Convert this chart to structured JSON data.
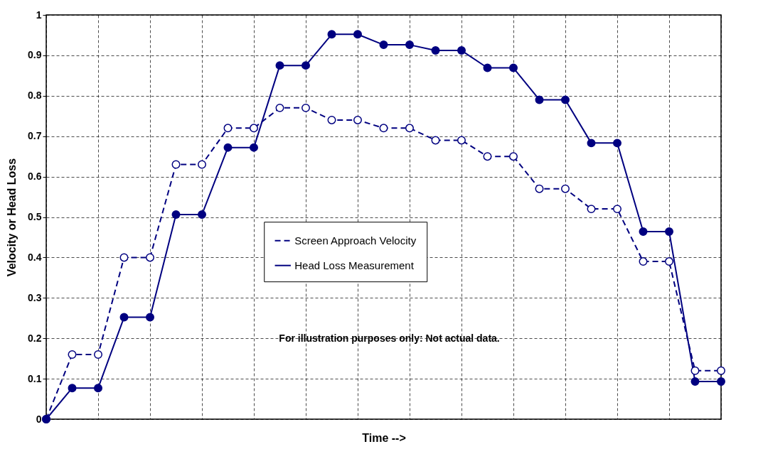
{
  "chart_data": {
    "type": "line",
    "xlabel": "Time -->",
    "ylabel": "Velocity or Head Loss",
    "annotations": [
      "For illustration purposes only:  Not actual data."
    ],
    "categories": [
      null,
      null,
      null,
      null,
      null,
      null,
      null,
      null,
      null,
      null,
      null,
      null,
      null,
      null,
      null,
      null,
      null,
      null,
      null,
      null,
      null,
      null,
      null,
      null,
      null,
      null,
      null
    ],
    "series": [
      {
        "name": "Screen Approach Velocity",
        "color": "#000080",
        "line_style": "dashed",
        "values": [
          0,
          0.16,
          0.16,
          0.4,
          0.4,
          0.63,
          0.63,
          0.72,
          0.72,
          0.77,
          0.77,
          0.74,
          0.74,
          0.72,
          0.72,
          0.69,
          0.69,
          0.65,
          0.65,
          0.57,
          0.57,
          0.52,
          0.52,
          0.39,
          0.39,
          0.12,
          0.12
        ]
      },
      {
        "name": "Head Loss Measurement",
        "color": "#000080",
        "line_style": "solid",
        "values": [
          0,
          0.077,
          0.077,
          0.252,
          0.252,
          0.506,
          0.506,
          0.672,
          0.672,
          0.875,
          0.875,
          0.952,
          0.952,
          0.926,
          0.926,
          0.912,
          0.912,
          0.869,
          0.869,
          0.79,
          0.79,
          0.683,
          0.683,
          0.464,
          0.464,
          0.093,
          0.093
        ]
      }
    ],
    "ylim": [
      0,
      1
    ],
    "yticks": [
      0,
      0.1,
      0.2,
      0.3,
      0.4,
      0.5,
      0.6,
      0.7,
      0.8,
      0.9,
      1
    ],
    "grid": true,
    "legend": "center",
    "marker": "circle",
    "tick_labels": "y"
  }
}
